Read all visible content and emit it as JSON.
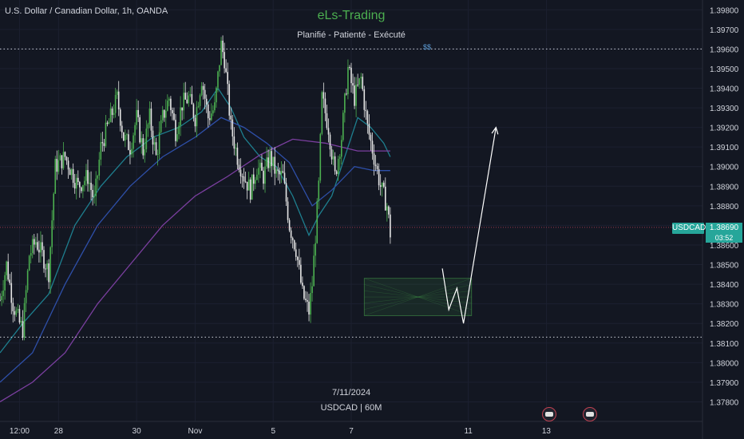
{
  "header": {
    "symbol_title": "U.S. Dollar / Canadian Dollar, 1h, OANDA",
    "brand": "eLs-Trading",
    "motto": "Planifié - Patienté - Exécuté"
  },
  "footer": {
    "date": "7/11/2024",
    "interval": "USDCAD | 60M"
  },
  "last_price": {
    "ticker": "USDCAD",
    "value": "1.38690",
    "countdown": "03:52"
  },
  "level_marker": "$$",
  "colors": {
    "background": "#131722",
    "candle_up": "#4caf50",
    "candle_down": "#e6e6e6",
    "ma_fast": "#1e7f8f",
    "ma_mid": "#2e4fa8",
    "ma_slow": "#7b3fa0",
    "level_line": "#cfd3dc",
    "zone": "#4caf50",
    "projection": "#ffffff",
    "price_tag": "#26a69a"
  },
  "chart_data": {
    "type": "candlestick",
    "symbol": "USDCAD",
    "timeframe": "1h",
    "price_axis": {
      "range": [
        1.377,
        1.3985
      ],
      "ticks": [
        "1.39800",
        "1.39700",
        "1.39600",
        "1.39500",
        "1.39400",
        "1.39300",
        "1.39200",
        "1.39100",
        "1.39000",
        "1.38900",
        "1.38800",
        "1.38700",
        "1.38600",
        "1.38500",
        "1.38400",
        "1.38300",
        "1.38200",
        "1.38100",
        "1.38000",
        "1.37900",
        "1.37800"
      ]
    },
    "time_axis": {
      "range": [
        0,
        432
      ],
      "ticks": [
        {
          "label": "12:00",
          "t": 12
        },
        {
          "label": "28",
          "t": 36
        },
        {
          "label": "30",
          "t": 84
        },
        {
          "label": "Nov",
          "t": 120
        },
        {
          "label": "5",
          "t": 168
        },
        {
          "label": "7",
          "t": 216
        },
        {
          "label": "11",
          "t": 288
        },
        {
          "label": "13",
          "t": 336
        }
      ]
    },
    "key_levels": [
      1.396,
      1.3813
    ],
    "last_price": 1.3869,
    "demand_zone": {
      "t_start": 224,
      "t_end": 290,
      "low": 1.3824,
      "high": 1.3843
    },
    "projection_path": [
      {
        "t": 272,
        "p": 1.3848
      },
      {
        "t": 276,
        "p": 1.3827
      },
      {
        "t": 281,
        "p": 1.3838
      },
      {
        "t": 285,
        "p": 1.382
      },
      {
        "t": 305,
        "p": 1.392
      }
    ],
    "anchors": [
      {
        "t": 0,
        "p": 1.3832
      },
      {
        "t": 4,
        "p": 1.385
      },
      {
        "t": 8,
        "p": 1.383
      },
      {
        "t": 12,
        "p": 1.382
      },
      {
        "t": 14,
        "p": 1.3817
      },
      {
        "t": 18,
        "p": 1.3855
      },
      {
        "t": 22,
        "p": 1.3862
      },
      {
        "t": 26,
        "p": 1.3855
      },
      {
        "t": 30,
        "p": 1.3846
      },
      {
        "t": 34,
        "p": 1.39
      },
      {
        "t": 40,
        "p": 1.3905
      },
      {
        "t": 48,
        "p": 1.389
      },
      {
        "t": 54,
        "p": 1.3895
      },
      {
        "t": 58,
        "p": 1.3882
      },
      {
        "t": 62,
        "p": 1.391
      },
      {
        "t": 66,
        "p": 1.392
      },
      {
        "t": 72,
        "p": 1.3935
      },
      {
        "t": 76,
        "p": 1.3915
      },
      {
        "t": 80,
        "p": 1.391
      },
      {
        "t": 84,
        "p": 1.3925
      },
      {
        "t": 88,
        "p": 1.3908
      },
      {
        "t": 92,
        "p": 1.3925
      },
      {
        "t": 96,
        "p": 1.3905
      },
      {
        "t": 100,
        "p": 1.3925
      },
      {
        "t": 104,
        "p": 1.3935
      },
      {
        "t": 108,
        "p": 1.3918
      },
      {
        "t": 112,
        "p": 1.3932
      },
      {
        "t": 116,
        "p": 1.3935
      },
      {
        "t": 120,
        "p": 1.3925
      },
      {
        "t": 124,
        "p": 1.3945
      },
      {
        "t": 128,
        "p": 1.3925
      },
      {
        "t": 132,
        "p": 1.393
      },
      {
        "t": 136,
        "p": 1.3962
      },
      {
        "t": 138,
        "p": 1.3955
      },
      {
        "t": 142,
        "p": 1.392
      },
      {
        "t": 146,
        "p": 1.3905
      },
      {
        "t": 150,
        "p": 1.3895
      },
      {
        "t": 154,
        "p": 1.3888
      },
      {
        "t": 158,
        "p": 1.39
      },
      {
        "t": 162,
        "p": 1.3895
      },
      {
        "t": 166,
        "p": 1.3905
      },
      {
        "t": 170,
        "p": 1.3896
      },
      {
        "t": 174,
        "p": 1.3895
      },
      {
        "t": 178,
        "p": 1.387
      },
      {
        "t": 182,
        "p": 1.3858
      },
      {
        "t": 186,
        "p": 1.3835
      },
      {
        "t": 190,
        "p": 1.3826
      },
      {
        "t": 192,
        "p": 1.384
      },
      {
        "t": 196,
        "p": 1.389
      },
      {
        "t": 198,
        "p": 1.3935
      },
      {
        "t": 202,
        "p": 1.392
      },
      {
        "t": 206,
        "p": 1.3895
      },
      {
        "t": 210,
        "p": 1.3915
      },
      {
        "t": 214,
        "p": 1.395
      },
      {
        "t": 218,
        "p": 1.3935
      },
      {
        "t": 222,
        "p": 1.3945
      },
      {
        "t": 226,
        "p": 1.392
      },
      {
        "t": 230,
        "p": 1.3905
      },
      {
        "t": 234,
        "p": 1.389
      },
      {
        "t": 238,
        "p": 1.388
      },
      {
        "t": 240,
        "p": 1.3866
      }
    ],
    "moving_averages": [
      {
        "color_key": "ma_fast",
        "points": [
          {
            "t": 0,
            "p": 1.3805
          },
          {
            "t": 14,
            "p": 1.382
          },
          {
            "t": 30,
            "p": 1.3835
          },
          {
            "t": 46,
            "p": 1.387
          },
          {
            "t": 62,
            "p": 1.389
          },
          {
            "t": 78,
            "p": 1.3905
          },
          {
            "t": 94,
            "p": 1.3915
          },
          {
            "t": 110,
            "p": 1.392
          },
          {
            "t": 124,
            "p": 1.3928
          },
          {
            "t": 134,
            "p": 1.394
          },
          {
            "t": 142,
            "p": 1.393
          },
          {
            "t": 150,
            "p": 1.3915
          },
          {
            "t": 160,
            "p": 1.3905
          },
          {
            "t": 170,
            "p": 1.39
          },
          {
            "t": 180,
            "p": 1.3885
          },
          {
            "t": 190,
            "p": 1.3865
          },
          {
            "t": 196,
            "p": 1.3875
          },
          {
            "t": 204,
            "p": 1.3885
          },
          {
            "t": 212,
            "p": 1.3905
          },
          {
            "t": 220,
            "p": 1.3925
          },
          {
            "t": 228,
            "p": 1.392
          },
          {
            "t": 236,
            "p": 1.3912
          },
          {
            "t": 240,
            "p": 1.3905
          }
        ]
      },
      {
        "color_key": "ma_mid",
        "points": [
          {
            "t": 0,
            "p": 1.379
          },
          {
            "t": 20,
            "p": 1.3805
          },
          {
            "t": 40,
            "p": 1.384
          },
          {
            "t": 60,
            "p": 1.387
          },
          {
            "t": 80,
            "p": 1.389
          },
          {
            "t": 100,
            "p": 1.3905
          },
          {
            "t": 120,
            "p": 1.3915
          },
          {
            "t": 136,
            "p": 1.3925
          },
          {
            "t": 150,
            "p": 1.392
          },
          {
            "t": 164,
            "p": 1.3912
          },
          {
            "t": 178,
            "p": 1.3902
          },
          {
            "t": 192,
            "p": 1.388
          },
          {
            "t": 204,
            "p": 1.3888
          },
          {
            "t": 218,
            "p": 1.39
          },
          {
            "t": 230,
            "p": 1.3898
          },
          {
            "t": 240,
            "p": 1.3898
          }
        ]
      },
      {
        "color_key": "ma_slow",
        "points": [
          {
            "t": 0,
            "p": 1.378
          },
          {
            "t": 20,
            "p": 1.379
          },
          {
            "t": 40,
            "p": 1.3805
          },
          {
            "t": 60,
            "p": 1.383
          },
          {
            "t": 80,
            "p": 1.385
          },
          {
            "t": 100,
            "p": 1.387
          },
          {
            "t": 120,
            "p": 1.3885
          },
          {
            "t": 140,
            "p": 1.3895
          },
          {
            "t": 160,
            "p": 1.3906
          },
          {
            "t": 180,
            "p": 1.3914
          },
          {
            "t": 200,
            "p": 1.3912
          },
          {
            "t": 220,
            "p": 1.3908
          },
          {
            "t": 240,
            "p": 1.3908
          }
        ]
      }
    ]
  }
}
